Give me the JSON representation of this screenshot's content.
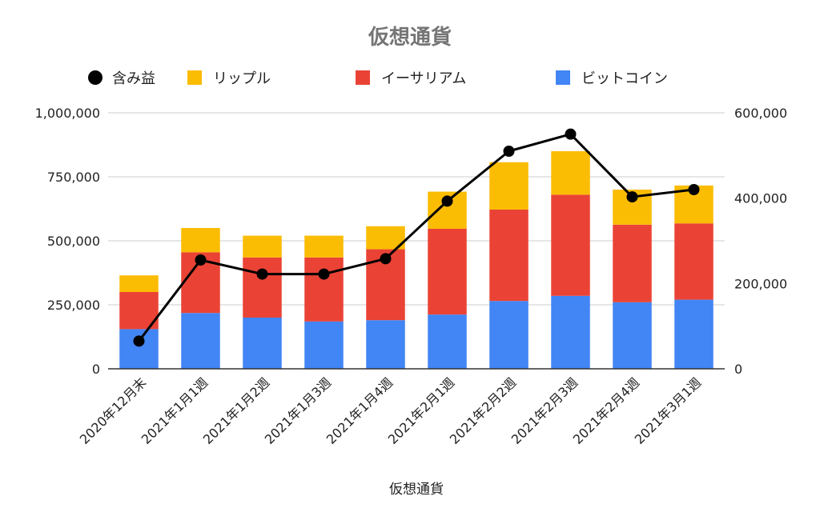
{
  "chart_data": {
    "type": "bar",
    "title": "仮想通貨",
    "xlabel": "仮想通貨",
    "categories": [
      "2020年12月末",
      "2021年1月1週",
      "2021年1月2週",
      "2021年1月3週",
      "2021年1月4週",
      "2021年2月1週",
      "2021年2月2週",
      "2021年2月3週",
      "2021年2月4週",
      "2021年3月1週"
    ],
    "stacked": true,
    "series": [
      {
        "name": "ビットコイン",
        "type": "bar",
        "axis": "left",
        "color": "#4285f4",
        "values": [
          155000,
          218000,
          200000,
          185000,
          190000,
          212000,
          265000,
          285000,
          260000,
          270000
        ]
      },
      {
        "name": "イーサリアム",
        "type": "bar",
        "axis": "left",
        "color": "#ea4335",
        "values": [
          145000,
          237000,
          235000,
          250000,
          277000,
          335000,
          357000,
          395000,
          303000,
          298000
        ]
      },
      {
        "name": "リップル",
        "type": "bar",
        "axis": "left",
        "color": "#fbbc04",
        "values": [
          65000,
          95000,
          85000,
          85000,
          90000,
          145000,
          185000,
          170000,
          137000,
          148000
        ]
      },
      {
        "name": "含み益",
        "type": "line",
        "axis": "right",
        "color": "#000000",
        "values": [
          65000,
          255000,
          222000,
          222000,
          258000,
          393000,
          510000,
          550000,
          403000,
          420000
        ]
      }
    ],
    "legend_order": [
      "含み益",
      "リップル",
      "イーサリアム",
      "ビットコイン"
    ],
    "legend_position": "top",
    "y_left": {
      "lim": [
        0,
        1000000
      ],
      "ticks": [
        "0",
        "250,000",
        "500,000",
        "750,000",
        "1,000,000"
      ]
    },
    "y_right": {
      "lim": [
        0,
        600000
      ],
      "ticks": [
        "0",
        "200,000",
        "400,000",
        "600,000"
      ]
    },
    "grid": true
  }
}
